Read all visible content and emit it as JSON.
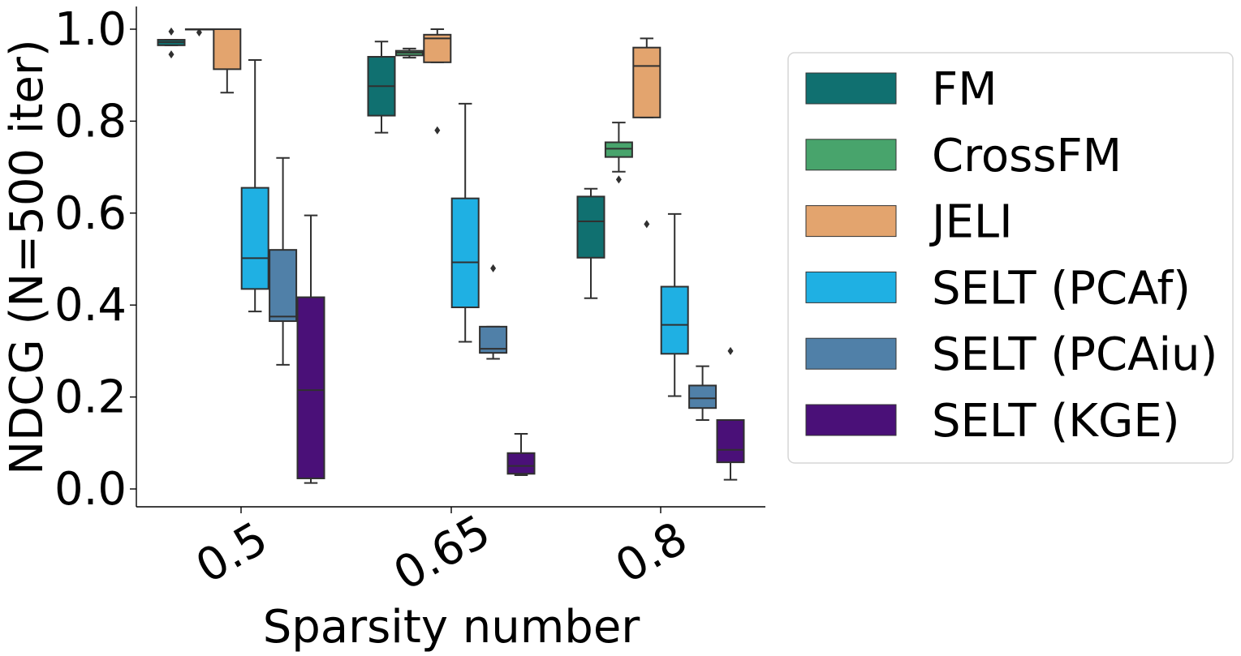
{
  "chart_data": {
    "type": "box",
    "xlabel": "Sparsity number",
    "ylabel": "NDCG (N=500 iter)",
    "categories": [
      "0.5",
      "0.65",
      "0.8"
    ],
    "ylim": [
      -0.035,
      1.05
    ],
    "yticks": [
      "0.0",
      "0.2",
      "0.4",
      "0.6",
      "0.8",
      "1.0"
    ],
    "grid": false,
    "legend_position": "right",
    "series": [
      {
        "name": "FM",
        "color": "#107070",
        "boxes": [
          {
            "whislo": 0.965,
            "q1": 0.965,
            "med": 0.972,
            "q3": 0.977,
            "whishi": 0.977,
            "fliers": [
              0.945,
              0.995
            ]
          },
          {
            "whislo": 0.775,
            "q1": 0.812,
            "med": 0.876,
            "q3": 0.94,
            "whishi": 0.973,
            "fliers": []
          },
          {
            "whislo": 0.415,
            "q1": 0.503,
            "med": 0.582,
            "q3": 0.636,
            "whishi": 0.653,
            "fliers": []
          }
        ]
      },
      {
        "name": "CrossFM",
        "color": "#48a46c",
        "boxes": [
          {
            "whislo": 1.0,
            "q1": 1.0,
            "med": 1.0,
            "q3": 1.0,
            "whishi": 1.0,
            "fliers": [
              0.993
            ]
          },
          {
            "whislo": 0.938,
            "q1": 0.943,
            "med": 0.949,
            "q3": 0.953,
            "whishi": 0.958,
            "fliers": []
          },
          {
            "whislo": 0.69,
            "q1": 0.722,
            "med": 0.74,
            "q3": 0.754,
            "whishi": 0.797,
            "fliers": [
              0.673
            ]
          }
        ]
      },
      {
        "name": "JELI",
        "color": "#e3a46e",
        "boxes": [
          {
            "whislo": 0.862,
            "q1": 0.913,
            "med": 1.0,
            "q3": 1.0,
            "whishi": 1.0,
            "fliers": []
          },
          {
            "whislo": 0.928,
            "q1": 0.928,
            "med": 0.98,
            "q3": 0.988,
            "whishi": 1.0,
            "fliers": [
              0.78
            ]
          },
          {
            "whislo": 0.808,
            "q1": 0.808,
            "med": 0.92,
            "q3": 0.96,
            "whishi": 0.98,
            "fliers": [
              0.576
            ]
          }
        ]
      },
      {
        "name": "SELT (PCAf)",
        "color": "#1fb0e3",
        "boxes": [
          {
            "whislo": 0.386,
            "q1": 0.435,
            "med": 0.502,
            "q3": 0.655,
            "whishi": 0.933,
            "fliers": []
          },
          {
            "whislo": 0.32,
            "q1": 0.395,
            "med": 0.493,
            "q3": 0.632,
            "whishi": 0.838,
            "fliers": []
          },
          {
            "whislo": 0.202,
            "q1": 0.294,
            "med": 0.357,
            "q3": 0.44,
            "whishi": 0.598,
            "fliers": []
          }
        ]
      },
      {
        "name": "SELT (PCAiu)",
        "color": "#5080a8",
        "boxes": [
          {
            "whislo": 0.27,
            "q1": 0.365,
            "med": 0.375,
            "q3": 0.52,
            "whishi": 0.72,
            "fliers": []
          },
          {
            "whislo": 0.283,
            "q1": 0.296,
            "med": 0.305,
            "q3": 0.353,
            "whishi": 0.353,
            "fliers": [
              0.48
            ]
          },
          {
            "whislo": 0.15,
            "q1": 0.176,
            "med": 0.197,
            "q3": 0.225,
            "whishi": 0.267,
            "fliers": []
          }
        ]
      },
      {
        "name": "SELT (KGE)",
        "color": "#4a1078",
        "boxes": [
          {
            "whislo": 0.013,
            "q1": 0.023,
            "med": 0.215,
            "q3": 0.417,
            "whishi": 0.595,
            "fliers": []
          },
          {
            "whislo": 0.03,
            "q1": 0.033,
            "med": 0.05,
            "q3": 0.078,
            "whishi": 0.12,
            "fliers": []
          },
          {
            "whislo": 0.02,
            "q1": 0.058,
            "med": 0.085,
            "q3": 0.15,
            "whishi": 0.15,
            "fliers": [
              0.3
            ]
          }
        ]
      }
    ]
  }
}
